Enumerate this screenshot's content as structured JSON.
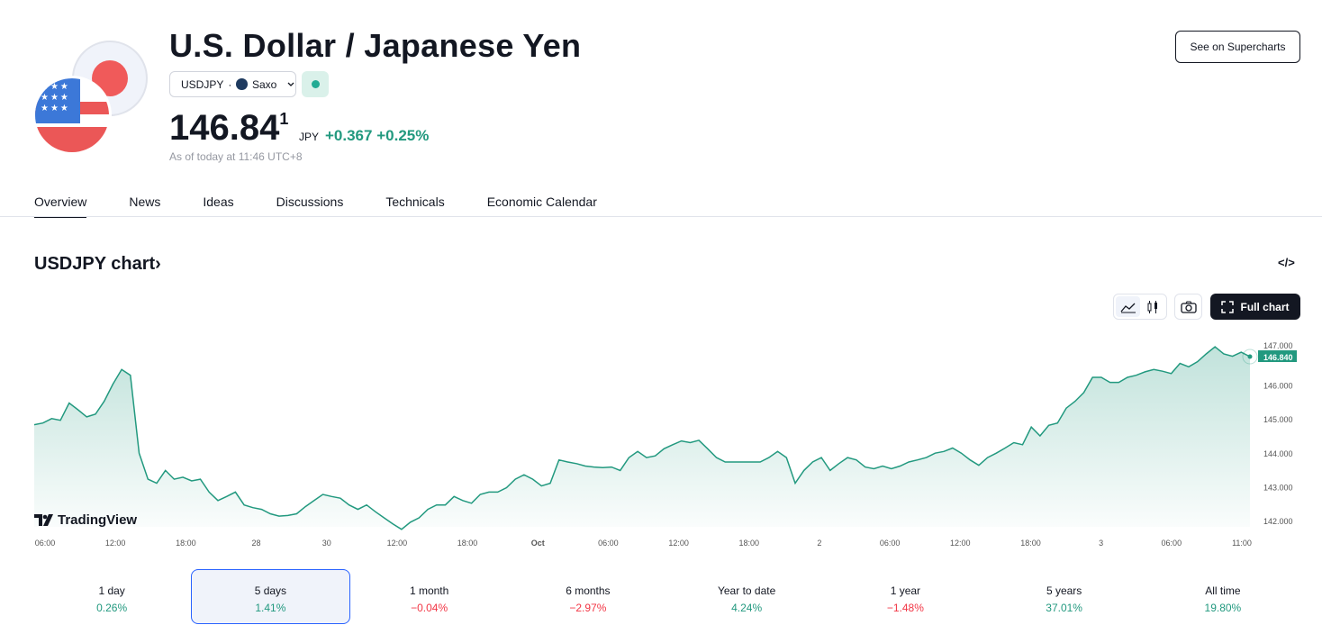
{
  "header": {
    "title": "U.S. Dollar / Japanese Yen",
    "symbol": "USDJPY",
    "separator": "·",
    "exchange": "Saxo",
    "price_main": "146.84",
    "price_sup": "1",
    "currency": "JPY",
    "change": "+0.367",
    "change_pct": "+0.25%",
    "as_of": "As of today at 11:46 UTC+8",
    "supercharts_label": "See on Supercharts",
    "market_status_color": "#22ab94"
  },
  "tabs": [
    {
      "label": "Overview",
      "active": true
    },
    {
      "label": "News"
    },
    {
      "label": "Ideas"
    },
    {
      "label": "Discussions"
    },
    {
      "label": "Technicals"
    },
    {
      "label": "Economic Calendar"
    }
  ],
  "chart_section": {
    "title": "USDJPY chart",
    "chevron": "›",
    "embed": "</>",
    "full_chart_label": "Full chart",
    "branding": "TradingView"
  },
  "chart_data": {
    "type": "area",
    "line_color": "#22997f",
    "ylim": [
      141.6,
      147.1
    ],
    "y_ticks": [
      "142.000",
      "143.000",
      "144.000",
      "145.000",
      "146.000",
      "147.000"
    ],
    "x_ticks": [
      "06:00",
      "12:00",
      "18:00",
      "28",
      "30",
      "12:00",
      "18:00",
      "Oct",
      "06:00",
      "12:00",
      "18:00",
      "2",
      "06:00",
      "12:00",
      "18:00",
      "3",
      "06:00",
      "11:00"
    ],
    "last_value_label": "146.840",
    "values": [
      144.83,
      144.88,
      145.01,
      144.96,
      145.47,
      145.27,
      145.06,
      145.14,
      145.52,
      146.03,
      146.46,
      146.29,
      143.99,
      143.22,
      143.1,
      143.48,
      143.22,
      143.28,
      143.17,
      143.22,
      142.84,
      142.59,
      142.71,
      142.84,
      142.46,
      142.38,
      142.33,
      142.2,
      142.13,
      142.15,
      142.2,
      142.41,
      142.59,
      142.77,
      142.71,
      142.66,
      142.46,
      142.33,
      142.46,
      142.26,
      142.08,
      141.9,
      141.74,
      141.95,
      142.08,
      142.33,
      142.46,
      142.46,
      142.71,
      142.59,
      142.51,
      142.77,
      142.84,
      142.84,
      142.97,
      143.22,
      143.35,
      143.22,
      143.02,
      143.1,
      143.79,
      143.73,
      143.68,
      143.61,
      143.58,
      143.56,
      143.58,
      143.48,
      143.86,
      144.04,
      143.86,
      143.91,
      144.12,
      144.24,
      144.35,
      144.3,
      144.37,
      144.12,
      143.86,
      143.73,
      143.73,
      143.73,
      143.73,
      143.73,
      143.86,
      144.04,
      143.86,
      143.1,
      143.48,
      143.73,
      143.86,
      143.48,
      143.68,
      143.86,
      143.79,
      143.58,
      143.53,
      143.61,
      143.53,
      143.61,
      143.73,
      143.79,
      143.86,
      143.99,
      144.04,
      144.14,
      143.99,
      143.79,
      143.63,
      143.86,
      143.99,
      144.14,
      144.3,
      144.24,
      144.76,
      144.5,
      144.81,
      144.88,
      145.32,
      145.52,
      145.78,
      146.23,
      146.23,
      146.08,
      146.08,
      146.23,
      146.29,
      146.39,
      146.46,
      146.41,
      146.34,
      146.64,
      146.54,
      146.69,
      146.92,
      147.13,
      146.92,
      146.85,
      146.97,
      146.84
    ]
  },
  "performance": [
    {
      "label": "1 day",
      "value": "0.26%",
      "trend": "pos"
    },
    {
      "label": "5 days",
      "value": "1.41%",
      "trend": "pos",
      "selected": true
    },
    {
      "label": "1 month",
      "value": "−0.04%",
      "trend": "neg"
    },
    {
      "label": "6 months",
      "value": "−2.97%",
      "trend": "neg"
    },
    {
      "label": "Year to date",
      "value": "4.24%",
      "trend": "pos"
    },
    {
      "label": "1 year",
      "value": "−1.48%",
      "trend": "neg"
    },
    {
      "label": "5 years",
      "value": "37.01%",
      "trend": "pos"
    },
    {
      "label": "All time",
      "value": "19.80%",
      "trend": "pos"
    }
  ]
}
